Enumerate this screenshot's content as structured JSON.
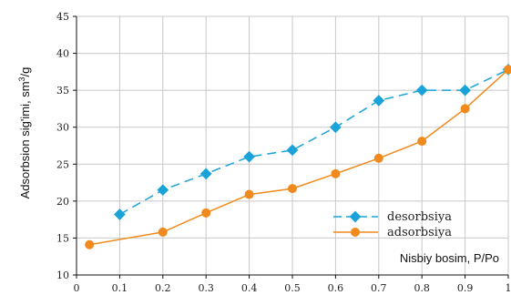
{
  "chart_data": {
    "type": "line",
    "xlabel": "Nisbiy bosim, P/Po",
    "ylabel_base": "Adsorbsion sig'imi, sm",
    "ylabel_sup": "3",
    "ylabel_tail": "/g",
    "xlim": [
      0,
      1
    ],
    "ylim": [
      10,
      45
    ],
    "xticks": [
      "0",
      "0.1",
      "0.2",
      "0.3",
      "0.4",
      "0.5",
      "0.6",
      "0.7",
      "0.8",
      "0.9",
      "1"
    ],
    "yticks": [
      "10",
      "15",
      "20",
      "25",
      "30",
      "35",
      "40",
      "45"
    ],
    "grid": true,
    "legend_position": "lower-right",
    "series": [
      {
        "name": "desorbsiya",
        "color": "#1aa3d8",
        "line_style": "dashed",
        "marker": "diamond",
        "x": [
          0.1,
          0.2,
          0.3,
          0.4,
          0.5,
          0.6,
          0.7,
          0.8,
          0.9,
          1.0
        ],
        "y": [
          18.2,
          21.5,
          23.7,
          26.0,
          26.9,
          30.0,
          33.6,
          35.0,
          35.0,
          37.8
        ]
      },
      {
        "name": "adsorbsiya",
        "color": "#f08a1c",
        "line_style": "solid",
        "marker": "circle",
        "x": [
          0.03,
          0.2,
          0.3,
          0.4,
          0.5,
          0.6,
          0.7,
          0.8,
          0.9,
          1.0
        ],
        "y": [
          14.1,
          15.8,
          18.4,
          20.9,
          21.7,
          23.7,
          25.8,
          28.1,
          32.5,
          37.8
        ]
      }
    ]
  }
}
